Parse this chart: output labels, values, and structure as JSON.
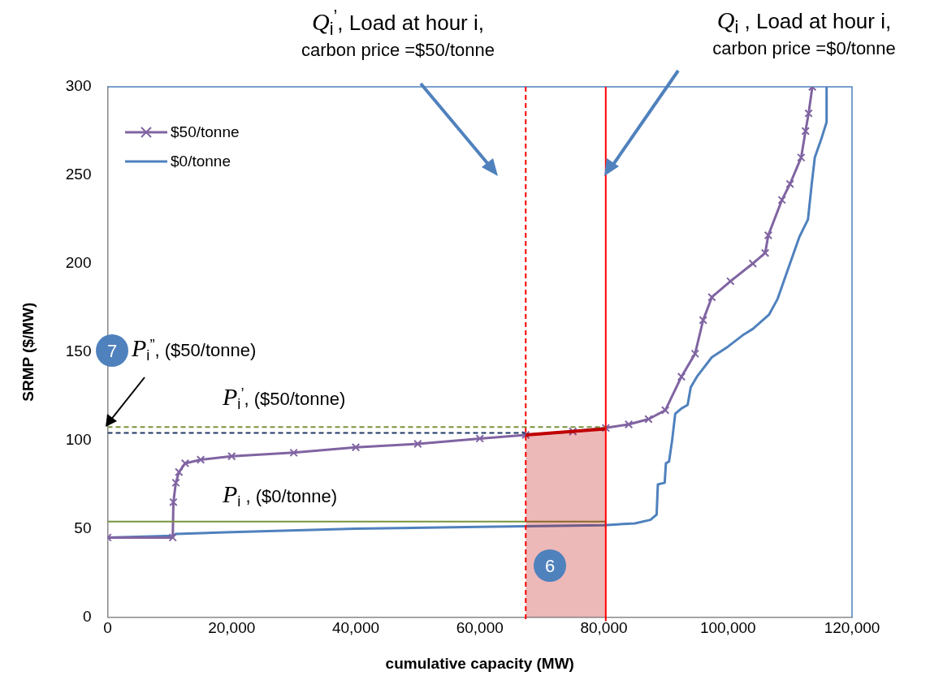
{
  "chart_data": {
    "type": "line",
    "xlabel": "cumulative capacity (MW)",
    "ylabel": "SRMP ($/MW)",
    "xlim": [
      0,
      120000
    ],
    "xticks": [
      0,
      {
        "value": 20000,
        "label": "20,000"
      },
      {
        "value": 40000,
        "label": "40,000"
      },
      {
        "value": 60000,
        "label": "60,000"
      },
      {
        "value": 80000,
        "label": "80,000"
      },
      {
        "value": 100000,
        "label": "100,000"
      },
      {
        "value": 120000,
        "label": "120,000"
      }
    ],
    "ylim": [
      0,
      300
    ],
    "yticks": [
      0,
      50,
      100,
      150,
      200,
      250,
      300
    ],
    "grid": false,
    "legend": "top left",
    "series": [
      {
        "type": "area",
        "color": "#c00000",
        "x": [
          67400,
          80300
        ],
        "values": [
          103,
          106.5
        ]
      },
      {
        "type": "line",
        "color": "#77933c",
        "line_style": "dashed",
        "x": [
          0,
          80300
        ],
        "values": [
          107.5,
          107.5
        ]
      },
      {
        "type": "line",
        "color": "#1f3864",
        "line_style": "dashed",
        "x": [
          0,
          67400
        ],
        "values": [
          104.2,
          104.2
        ]
      },
      {
        "type": "line",
        "color": "#77933c",
        "line_style": "solid",
        "x": [
          0,
          80300
        ],
        "values": [
          54,
          54
        ]
      },
      {
        "name": "$50/tonne",
        "type": "line",
        "color": "#8064a2",
        "marker": "cross",
        "x": [
          0,
          10500,
          10600,
          11000,
          11500,
          12500,
          15000,
          20000,
          30000,
          40000,
          50000,
          60000,
          67400,
          75000,
          80300,
          84000,
          87200,
          89900,
          92500,
          94700,
          96000,
          97400,
          100400,
          104000,
          106000,
          106500,
          108700,
          110000,
          111800,
          112500,
          113000,
          113600
        ],
        "values": [
          45,
          45,
          65,
          76,
          82,
          87,
          89,
          91,
          93,
          96,
          98,
          101,
          103,
          105,
          107,
          109,
          112,
          117,
          136,
          149,
          168,
          181,
          190,
          200,
          206,
          216,
          236,
          245,
          260,
          275,
          285,
          300
        ]
      },
      {
        "name": "$0/tonne",
        "type": "line",
        "color": "#4f81bd",
        "marker": "none",
        "x": [
          0,
          10500,
          11000,
          20000,
          40000,
          60000,
          80000,
          85000,
          87500,
          88500,
          88700,
          89800,
          90000,
          90500,
          91000,
          91500,
          92500,
          93500,
          94000,
          95000,
          97400,
          100000,
          102600,
          104000,
          106600,
          108000,
          110000,
          111500,
          112900,
          113500,
          114000,
          115000,
          115900,
          115900
        ],
        "values": [
          45,
          46,
          47,
          48,
          50,
          51,
          52,
          53,
          55,
          58,
          75,
          76,
          87,
          88,
          100,
          115,
          118,
          120,
          130,
          136,
          147,
          153,
          160,
          163,
          171,
          180,
          200,
          215,
          225,
          245,
          260,
          270,
          280,
          300
        ]
      }
    ],
    "ref_lines": [
      {
        "axis": "x",
        "value": 67400,
        "color": "#ff0000",
        "line_style": "dashed"
      },
      {
        "axis": "x",
        "value": 80300,
        "color": "#ff0000",
        "line_style": "solid"
      }
    ],
    "annotations": [
      "Q$_{i}$$^{’}$, Load at hour i,\ncarbon price =$50/tonne",
      "Q$_{i}$ , Load at hour i,\ncarbon price =$0/tonne",
      "P$_{i}$$^{”}$, ($50/tonne)",
      "P$_{i}$$^{’}$, ($50/tonne)",
      "P$_{i}$ , ($0/tonne)",
      "7",
      "6"
    ]
  }
}
